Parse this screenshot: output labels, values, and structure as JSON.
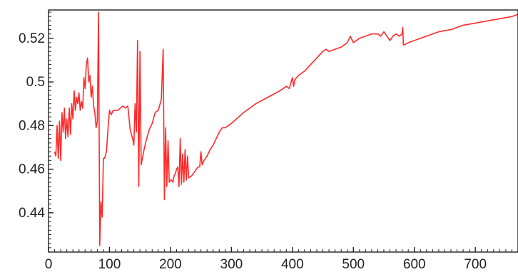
{
  "chart_data": {
    "type": "line",
    "title": "",
    "xlabel": "",
    "ylabel": "",
    "xlim": [
      0,
      770
    ],
    "ylim": [
      0.422,
      0.533
    ],
    "grid": false,
    "x_ticks": [
      0,
      100,
      200,
      300,
      400,
      500,
      600,
      700
    ],
    "y_ticks": [
      0.44,
      0.46,
      0.48,
      0.5,
      0.52
    ],
    "x_tick_labels": [
      "0",
      "100",
      "200",
      "300",
      "400",
      "500",
      "600",
      "700"
    ],
    "y_tick_labels": [
      "0.44",
      "0.46",
      "0.48",
      "0.5",
      "0.52"
    ],
    "line_color": "#ff2a2a",
    "series": [
      {
        "x": [
          10,
          12,
          14,
          16,
          18,
          20,
          22,
          24,
          26,
          28,
          30,
          32,
          34,
          36,
          38,
          40,
          42,
          44,
          46,
          48,
          50,
          52,
          54,
          56,
          58,
          60,
          62,
          64,
          66,
          68,
          70,
          72,
          74,
          76,
          78,
          80,
          82,
          84,
          86,
          88,
          90,
          92,
          95,
          98,
          100,
          103,
          106,
          110,
          114,
          118,
          122,
          126,
          130,
          134,
          138,
          140,
          142,
          144,
          146,
          148,
          150,
          152,
          154,
          156,
          160,
          165,
          170,
          175,
          180,
          185,
          188,
          190,
          192,
          194,
          196,
          198,
          200,
          202,
          204,
          206,
          208,
          210,
          212,
          214,
          216,
          218,
          220,
          222,
          224,
          226,
          228,
          230,
          235,
          240,
          245,
          248,
          250,
          252,
          255,
          260,
          265,
          270,
          275,
          280,
          285,
          290,
          300,
          320,
          340,
          360,
          380,
          390,
          395,
          400,
          402,
          404,
          410,
          420,
          430,
          440,
          450,
          455,
          460,
          470,
          480,
          490,
          495,
          500,
          510,
          520,
          530,
          540,
          545,
          550,
          555,
          560,
          565,
          570,
          575,
          580,
          581,
          582,
          583,
          590,
          600,
          610,
          620,
          640,
          660,
          680,
          700,
          720,
          740,
          760,
          770
        ],
        "y": [
          0.468,
          0.466,
          0.48,
          0.465,
          0.482,
          0.464,
          0.486,
          0.477,
          0.488,
          0.474,
          0.483,
          0.475,
          0.488,
          0.476,
          0.49,
          0.483,
          0.496,
          0.487,
          0.493,
          0.49,
          0.495,
          0.487,
          0.491,
          0.488,
          0.502,
          0.497,
          0.508,
          0.511,
          0.5,
          0.503,
          0.493,
          0.498,
          0.489,
          0.486,
          0.479,
          0.482,
          0.532,
          0.425,
          0.445,
          0.438,
          0.465,
          0.465,
          0.468,
          0.48,
          0.487,
          0.485,
          0.487,
          0.487,
          0.487,
          0.488,
          0.489,
          0.488,
          0.489,
          0.478,
          0.474,
          0.471,
          0.49,
          0.477,
          0.519,
          0.452,
          0.514,
          0.462,
          0.465,
          0.468,
          0.473,
          0.478,
          0.481,
          0.486,
          0.487,
          0.492,
          0.515,
          0.446,
          0.479,
          0.452,
          0.473,
          0.454,
          0.455,
          0.455,
          0.454,
          0.457,
          0.458,
          0.46,
          0.461,
          0.452,
          0.474,
          0.453,
          0.467,
          0.454,
          0.469,
          0.455,
          0.466,
          0.456,
          0.457,
          0.459,
          0.461,
          0.461,
          0.468,
          0.462,
          0.464,
          0.466,
          0.469,
          0.471,
          0.474,
          0.477,
          0.479,
          0.479,
          0.481,
          0.486,
          0.49,
          0.493,
          0.496,
          0.498,
          0.497,
          0.502,
          0.498,
          0.501,
          0.503,
          0.505,
          0.508,
          0.511,
          0.514,
          0.515,
          0.514,
          0.515,
          0.516,
          0.518,
          0.521,
          0.518,
          0.52,
          0.521,
          0.522,
          0.522,
          0.521,
          0.523,
          0.521,
          0.519,
          0.521,
          0.522,
          0.521,
          0.522,
          0.525,
          0.517,
          0.517,
          0.518,
          0.519,
          0.52,
          0.521,
          0.523,
          0.524,
          0.526,
          0.527,
          0.528,
          0.529,
          0.53,
          0.531
        ]
      }
    ]
  }
}
